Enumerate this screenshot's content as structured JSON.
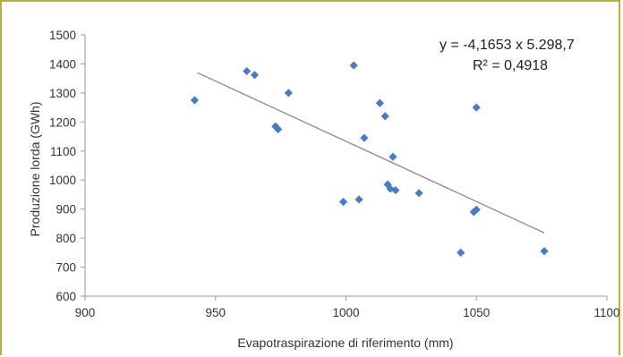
{
  "chart_data": {
    "type": "scatter",
    "xlabel": "Evapotraspirazione di riferimento (mm)",
    "ylabel": "Produzione lorda (GWh)",
    "xlim": [
      900,
      1100
    ],
    "ylim": [
      600,
      1500
    ],
    "xticks": [
      900,
      950,
      1000,
      1050,
      1100
    ],
    "yticks": [
      600,
      700,
      800,
      900,
      1000,
      1100,
      1200,
      1300,
      1400,
      1500
    ],
    "grid": false,
    "marker_color": "#4a7bc0",
    "trendline_color": "#8c8c8c",
    "series": [
      {
        "x": [
          942,
          962,
          965,
          973,
          974,
          978,
          999,
          1003,
          1005,
          1007,
          1013,
          1015,
          1016,
          1017,
          1018,
          1019,
          1028,
          1044,
          1049,
          1050,
          1050,
          1076
        ],
        "y": [
          1275,
          1375,
          1362,
          1185,
          1175,
          1300,
          925,
          1395,
          933,
          1145,
          1265,
          1220,
          985,
          970,
          1080,
          965,
          955,
          750,
          890,
          898,
          1250,
          755
        ]
      }
    ],
    "trendline": {
      "x": [
        943,
        1076
      ],
      "y": [
        1370,
        818
      ]
    },
    "annotations": {
      "equation": "y = -4,1653 x 5.298,7",
      "r2": "R² = 0,4918"
    }
  }
}
